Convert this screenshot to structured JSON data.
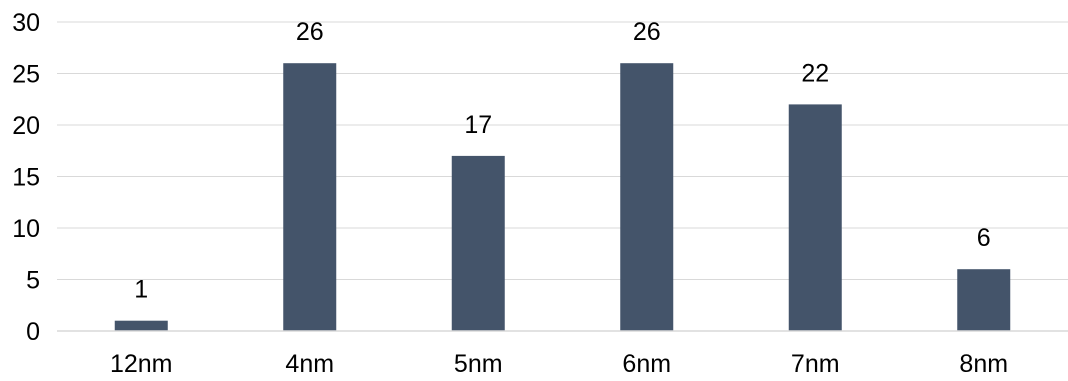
{
  "chart_data": {
    "type": "bar",
    "categories": [
      "12nm",
      "4nm",
      "5nm",
      "6nm",
      "7nm",
      "8nm"
    ],
    "values": [
      1,
      26,
      17,
      26,
      22,
      6
    ],
    "data_labels": [
      "1",
      "26",
      "17",
      "26",
      "22",
      "6"
    ],
    "y_ticks": [
      "0",
      "5",
      "10",
      "15",
      "20",
      "25",
      "30"
    ],
    "ylim": [
      0,
      30
    ],
    "grid": true,
    "legend": "none",
    "bar_color": "#44546a"
  }
}
